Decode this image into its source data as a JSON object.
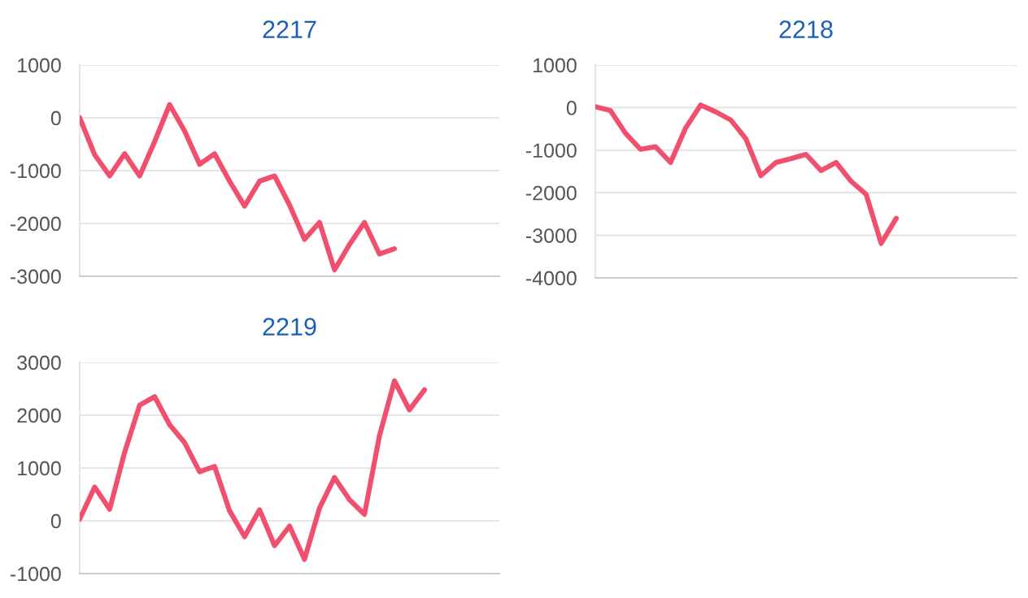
{
  "chart_data": [
    {
      "type": "line",
      "title": "2217",
      "categories": [
        null,
        null,
        null,
        null,
        null,
        null,
        null,
        null,
        null,
        null,
        null,
        null,
        null,
        null,
        null,
        null,
        null,
        null,
        null,
        null,
        null,
        null,
        null,
        null,
        null,
        null,
        null,
        null,
        null
      ],
      "ylim": [
        -3000,
        1000
      ],
      "yticks": [
        -3000,
        -2000,
        -1000,
        0,
        1000
      ],
      "grid": "y",
      "tick_labels": "y",
      "marker": "none",
      "line_style": "solid",
      "series": [
        {
          "color": "#f0506e",
          "values": [
            0,
            -700,
            -1100,
            -680,
            -1100,
            -450,
            250,
            -250,
            -880,
            -680,
            -1200,
            -1670,
            -1200,
            -1100,
            -1650,
            -2300,
            -1980,
            -2880,
            -2400,
            -1980,
            -2580,
            -2480,
            null,
            null,
            null,
            null,
            null,
            null,
            null
          ]
        }
      ]
    },
    {
      "type": "line",
      "title": "2218",
      "categories": [
        null,
        null,
        null,
        null,
        null,
        null,
        null,
        null,
        null,
        null,
        null,
        null,
        null,
        null,
        null,
        null,
        null,
        null,
        null,
        null,
        null,
        null,
        null,
        null,
        null,
        null,
        null,
        null,
        null
      ],
      "ylim": [
        -4000,
        1000
      ],
      "yticks": [
        -4000,
        -3000,
        -2000,
        -1000,
        0,
        1000
      ],
      "grid": "y",
      "tick_labels": "y",
      "marker": "none",
      "line_style": "solid",
      "series": [
        {
          "color": "#f0506e",
          "values": [
            20,
            -70,
            -600,
            -980,
            -920,
            -1290,
            -480,
            60,
            -100,
            -290,
            -730,
            -1600,
            -1290,
            -1200,
            -1100,
            -1480,
            -1290,
            -1730,
            -2040,
            -3190,
            -2600,
            null,
            null,
            null,
            null,
            null,
            null,
            null,
            null
          ]
        }
      ]
    },
    {
      "type": "line",
      "title": "2219",
      "categories": [
        null,
        null,
        null,
        null,
        null,
        null,
        null,
        null,
        null,
        null,
        null,
        null,
        null,
        null,
        null,
        null,
        null,
        null,
        null,
        null,
        null,
        null,
        null,
        null,
        null,
        null,
        null,
        null,
        null
      ],
      "ylim": [
        -1000,
        3000
      ],
      "yticks": [
        -1000,
        0,
        1000,
        2000,
        3000
      ],
      "grid": "y",
      "tick_labels": "y",
      "marker": "none",
      "line_style": "solid",
      "series": [
        {
          "color": "#f0506e",
          "values": [
            30,
            640,
            220,
            1300,
            2190,
            2350,
            1820,
            1480,
            930,
            1030,
            190,
            -300,
            210,
            -470,
            -100,
            -730,
            240,
            820,
            400,
            120,
            1610,
            2650,
            2100,
            2480,
            null,
            null,
            null,
            null,
            null
          ]
        }
      ]
    }
  ]
}
